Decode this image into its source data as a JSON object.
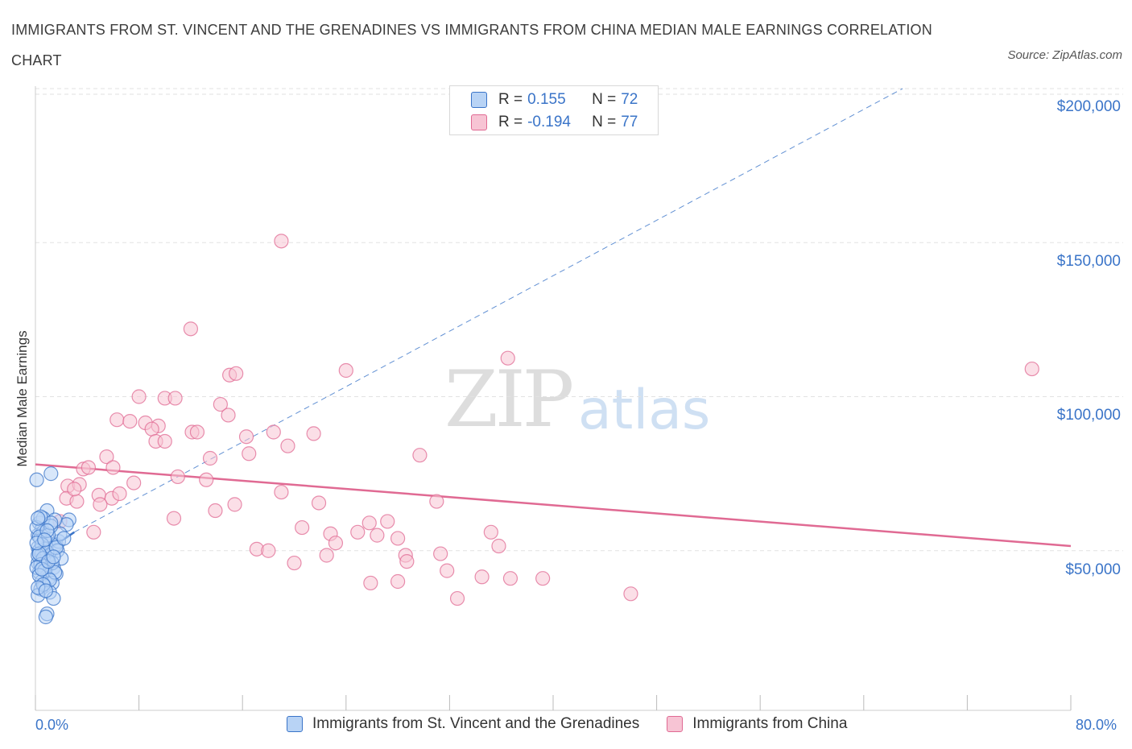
{
  "title": "IMMIGRANTS FROM ST. VINCENT AND THE GRENADINES VS IMMIGRANTS FROM CHINA MEDIAN MALE EARNINGS CORRELATION CHART",
  "source": "Source: ZipAtlas.com",
  "watermark": {
    "zip": "ZIP",
    "atlas": "atlas"
  },
  "legend_top": {
    "series1": {
      "r_label": "R =",
      "r_value": "0.155",
      "n_label": "N =",
      "n_value": "72"
    },
    "series2": {
      "r_label": "R =",
      "r_value": "-0.194",
      "n_label": "N =",
      "n_value": "77"
    }
  },
  "colors": {
    "blue": "#3a74c8",
    "blue_fill": "#b8d3f5",
    "pink": "#e06a93",
    "pink_fill": "#f7c4d4",
    "grid": "#e2e2e2"
  },
  "chart_data": {
    "type": "scatter",
    "title": "IMMIGRANTS FROM ST. VINCENT AND THE GRENADINES VS IMMIGRANTS FROM CHINA MEDIAN MALE EARNINGS CORRELATION CHART",
    "xlabel": "",
    "ylabel": "Median Male Earnings",
    "xlim": [
      0,
      80
    ],
    "ylim": [
      0,
      205000
    ],
    "x_tick_labels": [
      "0.0%",
      "80.0%"
    ],
    "y_ticks": [
      50000,
      100000,
      150000,
      200000
    ],
    "y_tick_labels": [
      "$50,000",
      "$100,000",
      "$150,000",
      "$200,000"
    ],
    "legend": [
      "Immigrants from St. Vincent and the Grenadines",
      "Immigrants from China"
    ],
    "series": [
      {
        "name": "Immigrants from St. Vincent and the Grenadines",
        "color": "#3a74c8",
        "trend": {
          "x": [
            0.2,
            3.0
          ],
          "y": [
            48000,
            56000
          ],
          "extended_x": [
            3.0,
            67
          ],
          "extended_y": [
            56000,
            200000
          ]
        },
        "points": [
          [
            0.1,
            73000
          ],
          [
            1.2,
            75000
          ],
          [
            0.9,
            63000
          ],
          [
            0.3,
            59000
          ],
          [
            0.5,
            57000
          ],
          [
            0.2,
            55000
          ],
          [
            0.6,
            56000
          ],
          [
            0.4,
            54000
          ],
          [
            0.8,
            53000
          ],
          [
            1.0,
            52500
          ],
          [
            1.6,
            52000
          ],
          [
            1.8,
            53000
          ],
          [
            0.2,
            51000
          ],
          [
            0.7,
            50500
          ],
          [
            0.3,
            50000
          ],
          [
            0.5,
            49000
          ],
          [
            1.1,
            48500
          ],
          [
            0.9,
            47000
          ],
          [
            0.4,
            46500
          ],
          [
            0.2,
            46000
          ],
          [
            0.6,
            45000
          ],
          [
            1.4,
            44500
          ],
          [
            0.8,
            44000
          ],
          [
            0.3,
            43000
          ],
          [
            1.6,
            42500
          ],
          [
            1.0,
            41000
          ],
          [
            0.5,
            40000
          ],
          [
            1.3,
            39500
          ],
          [
            0.7,
            38500
          ],
          [
            0.4,
            37500
          ],
          [
            1.1,
            36500
          ],
          [
            0.2,
            35500
          ],
          [
            1.4,
            34500
          ],
          [
            0.9,
            29500
          ],
          [
            0.8,
            28500
          ],
          [
            2.6,
            60000
          ],
          [
            2.4,
            58500
          ],
          [
            1.5,
            60000
          ],
          [
            1.9,
            55500
          ],
          [
            0.6,
            60500
          ],
          [
            1.2,
            58000
          ],
          [
            0.1,
            57500
          ],
          [
            0.3,
            54500
          ],
          [
            1.0,
            55000
          ],
          [
            0.5,
            52000
          ],
          [
            1.7,
            50000
          ],
          [
            0.9,
            49500
          ],
          [
            2.0,
            47500
          ],
          [
            0.2,
            48500
          ],
          [
            0.6,
            47500
          ],
          [
            1.3,
            46000
          ],
          [
            0.4,
            45500
          ],
          [
            0.1,
            44500
          ],
          [
            0.7,
            43500
          ],
          [
            1.5,
            43000
          ],
          [
            0.3,
            42000
          ],
          [
            1.1,
            40500
          ],
          [
            0.6,
            39000
          ],
          [
            0.2,
            38000
          ],
          [
            0.8,
            37000
          ],
          [
            1.2,
            59000
          ],
          [
            0.4,
            61000
          ],
          [
            0.9,
            56500
          ],
          [
            1.6,
            51000
          ],
          [
            0.3,
            49000
          ],
          [
            0.1,
            52500
          ],
          [
            2.2,
            54000
          ],
          [
            0.5,
            44000
          ],
          [
            1.0,
            46500
          ],
          [
            0.7,
            53500
          ],
          [
            1.4,
            48000
          ],
          [
            0.2,
            60500
          ]
        ]
      },
      {
        "name": "Immigrants from China",
        "color": "#e06a93",
        "trend": {
          "x": [
            0,
            80
          ],
          "y": [
            78000,
            51500
          ]
        },
        "points": [
          [
            19.0,
            150500
          ],
          [
            12.0,
            122000
          ],
          [
            36.5,
            112500
          ],
          [
            24.0,
            108500
          ],
          [
            15.0,
            107000
          ],
          [
            15.5,
            107500
          ],
          [
            8.0,
            100000
          ],
          [
            10.0,
            99500
          ],
          [
            10.8,
            99500
          ],
          [
            14.3,
            97500
          ],
          [
            14.9,
            94000
          ],
          [
            6.3,
            92500
          ],
          [
            7.3,
            92000
          ],
          [
            8.5,
            91500
          ],
          [
            9.5,
            90500
          ],
          [
            9.0,
            89500
          ],
          [
            12.1,
            88500
          ],
          [
            12.5,
            88500
          ],
          [
            18.4,
            88500
          ],
          [
            21.5,
            88000
          ],
          [
            16.3,
            87000
          ],
          [
            9.3,
            85500
          ],
          [
            10.0,
            85500
          ],
          [
            19.5,
            84000
          ],
          [
            5.5,
            80500
          ],
          [
            13.5,
            80000
          ],
          [
            16.5,
            81500
          ],
          [
            29.7,
            81000
          ],
          [
            3.7,
            76500
          ],
          [
            4.1,
            77000
          ],
          [
            6.0,
            77000
          ],
          [
            7.6,
            72000
          ],
          [
            13.2,
            73000
          ],
          [
            19.0,
            69000
          ],
          [
            2.5,
            71000
          ],
          [
            3.4,
            71500
          ],
          [
            4.9,
            68000
          ],
          [
            5.9,
            67000
          ],
          [
            2.4,
            67000
          ],
          [
            3.2,
            66000
          ],
          [
            5.0,
            65000
          ],
          [
            15.4,
            65000
          ],
          [
            21.9,
            65500
          ],
          [
            31.0,
            66000
          ],
          [
            13.9,
            63000
          ],
          [
            10.7,
            60500
          ],
          [
            25.8,
            59000
          ],
          [
            27.2,
            59500
          ],
          [
            1.9,
            59500
          ],
          [
            4.5,
            56000
          ],
          [
            22.8,
            55500
          ],
          [
            24.9,
            56000
          ],
          [
            26.4,
            55000
          ],
          [
            28.0,
            54000
          ],
          [
            23.2,
            52500
          ],
          [
            35.8,
            51500
          ],
          [
            17.1,
            50500
          ],
          [
            18.0,
            50000
          ],
          [
            28.6,
            48500
          ],
          [
            31.3,
            49000
          ],
          [
            22.5,
            48500
          ],
          [
            28.7,
            46500
          ],
          [
            20.0,
            46000
          ],
          [
            31.8,
            43500
          ],
          [
            34.5,
            41500
          ],
          [
            36.7,
            41000
          ],
          [
            39.2,
            41000
          ],
          [
            25.9,
            39500
          ],
          [
            28.0,
            40000
          ],
          [
            32.6,
            34500
          ],
          [
            46.0,
            36000
          ],
          [
            77.0,
            109000
          ],
          [
            3.0,
            70000
          ],
          [
            6.5,
            68500
          ],
          [
            11.0,
            74000
          ],
          [
            20.6,
            57500
          ],
          [
            35.2,
            56000
          ]
        ]
      }
    ]
  },
  "bottom_legend": {
    "item1": "Immigrants from St. Vincent and the Grenadines",
    "item2": "Immigrants from China"
  }
}
